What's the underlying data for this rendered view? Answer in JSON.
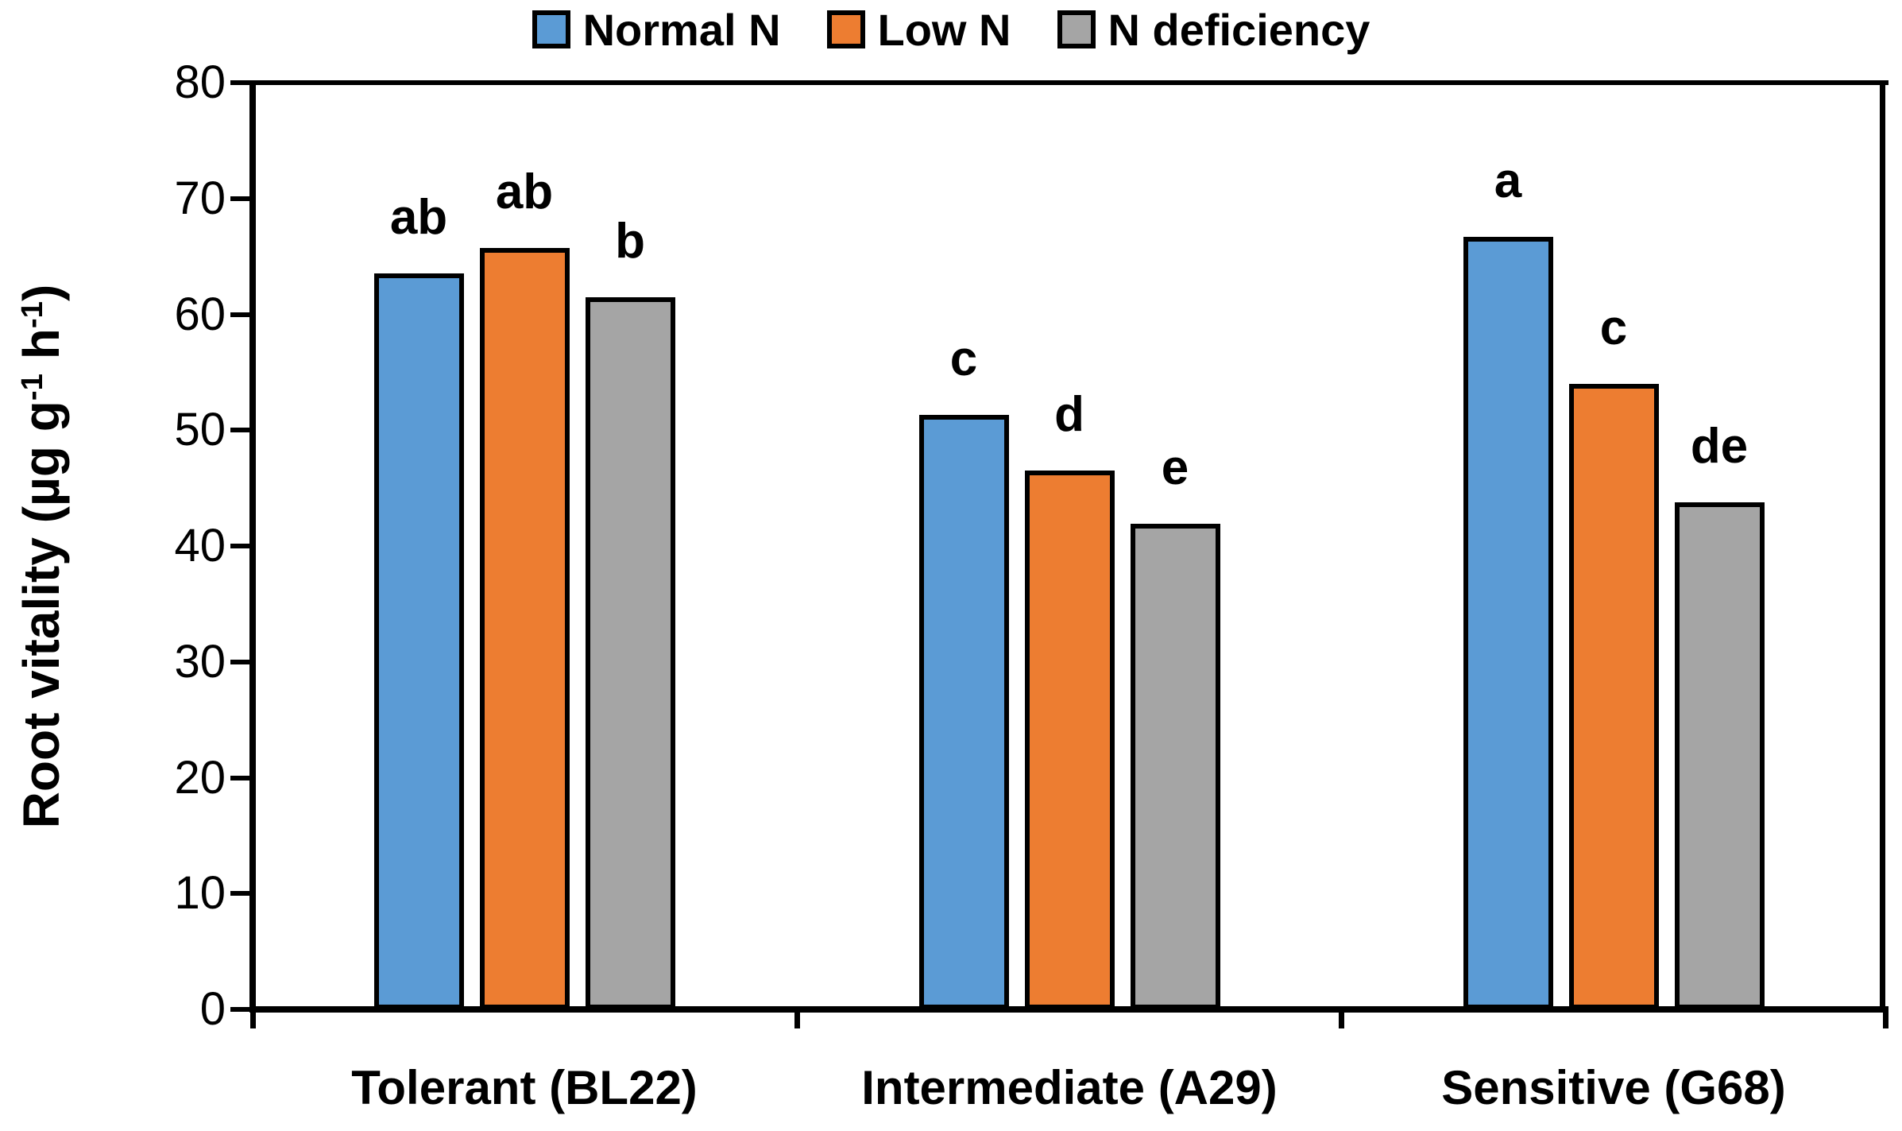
{
  "chart_data": {
    "type": "bar",
    "title": "",
    "xlabel": "",
    "ylabel": "Root vitality (µg g-1 h-1)",
    "ylabel_parts": {
      "text1": "Root vitality (µg g",
      "sup1": "-1",
      "text2": " h",
      "sup2": "-1",
      "text3": ")"
    },
    "categories": [
      "Tolerant (BL22)",
      "Intermediate (A29)",
      "Sensitive (G68)"
    ],
    "series": [
      {
        "name": "Normal N",
        "color": "#5B9BD5",
        "values": [
          63.5,
          51.3,
          66.7
        ],
        "letters": [
          "ab",
          "c",
          "a"
        ]
      },
      {
        "name": "Low N",
        "color": "#ED7D31",
        "values": [
          65.7,
          46.5,
          54.0
        ],
        "letters": [
          "ab",
          "d",
          "c"
        ]
      },
      {
        "name": "N deficiency",
        "color": "#A5A5A5",
        "values": [
          61.5,
          41.9,
          43.8
        ],
        "letters": [
          "b",
          "e",
          "de"
        ]
      }
    ],
    "ylim": [
      0,
      80
    ],
    "yticks": [
      0,
      10,
      20,
      30,
      40,
      50,
      60,
      70,
      80
    ],
    "legend_position": "top",
    "grid": false,
    "bar_border_color": "#000000",
    "axis_color": "#000000",
    "text_color": "#000000"
  }
}
